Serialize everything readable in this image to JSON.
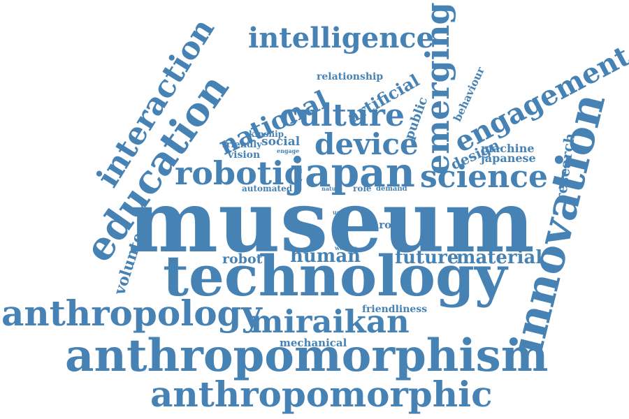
{
  "word_cloud": {
    "color": "#4682b4",
    "words": {
      "museum": "museum",
      "technology": "technology",
      "anthropomorphism": "anthropomorphism",
      "anthropomorphic": "anthropomorphic",
      "anthropology": "anthropology",
      "miraikan": "miraikan",
      "innovation": "innovation",
      "education": "education",
      "japan": "japan",
      "robotic": "robotic",
      "science": "science",
      "device": "device",
      "culture": "culture",
      "emerging": "emerging",
      "engagement": "engagement",
      "intelligence": "intelligence",
      "interaction": "interaction",
      "national": "national",
      "artificial": "artificial",
      "relationship": "relationship",
      "public": "public",
      "behaviour": "behaviour",
      "design": "design",
      "machine": "machine",
      "japanese": "japanese",
      "research": "research",
      "kinship": "kinship",
      "friendly": "friendly",
      "social": "social",
      "vision": "vision",
      "engage": "engage",
      "automated": "automated",
      "nature": "nature",
      "role": "role",
      "demand": "demand",
      "user": "user",
      "paro": "paro",
      "worker": "worker",
      "robot": "robot",
      "human": "human",
      "future": "future",
      "material": "material",
      "volunteer": "volunteer",
      "friendliness": "friendliness",
      "mechanical": "mechanical"
    }
  }
}
